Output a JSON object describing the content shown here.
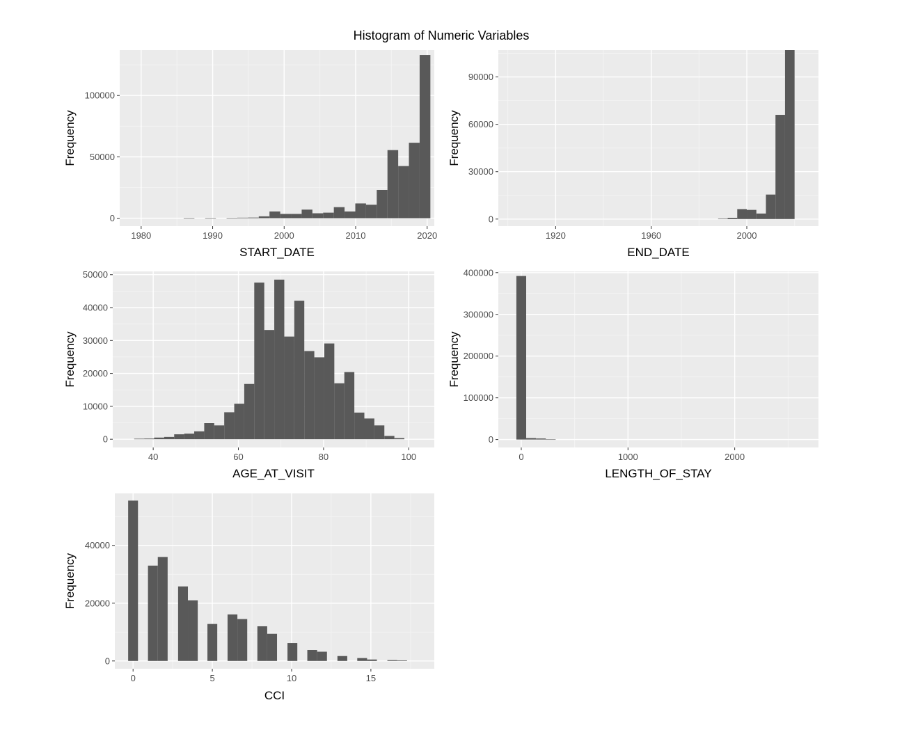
{
  "figure": {
    "title": "Histogram of Numeric Variables"
  },
  "colors": {
    "panel_background": "#ebebeb",
    "grid_major": "#ffffff",
    "grid_minor": "#f5f5f5",
    "bar_fill": "#595959",
    "tick_text": "#4d4d4d",
    "axis_title": "#000000",
    "page_background": "#ffffff"
  },
  "chart_data": [
    {
      "type": "bar",
      "xlabel": "START_DATE",
      "ylabel": "Frequency",
      "xlim": [
        1977,
        2021
      ],
      "ylim": [
        -6500,
        137000
      ],
      "x_ticks": [
        1980,
        1990,
        2000,
        2010,
        2020
      ],
      "y_ticks": [
        0,
        50000,
        100000
      ],
      "bin_width": 1.5,
      "bars": [
        {
          "x": 1986.7,
          "y": 300
        },
        {
          "x": 1989.7,
          "y": 300
        },
        {
          "x": 1992.7,
          "y": 200
        },
        {
          "x": 1994.2,
          "y": 400
        },
        {
          "x": 1995.7,
          "y": 500
        },
        {
          "x": 1997.2,
          "y": 1500
        },
        {
          "x": 1998.7,
          "y": 5500
        },
        {
          "x": 2000.2,
          "y": 3500
        },
        {
          "x": 2001.7,
          "y": 3500
        },
        {
          "x": 2003.2,
          "y": 7000
        },
        {
          "x": 2004.7,
          "y": 4000
        },
        {
          "x": 2006.2,
          "y": 4500
        },
        {
          "x": 2007.7,
          "y": 9000
        },
        {
          "x": 2009.2,
          "y": 5500
        },
        {
          "x": 2010.7,
          "y": 12000
        },
        {
          "x": 2012.2,
          "y": 11000
        },
        {
          "x": 2013.7,
          "y": 23000
        },
        {
          "x": 2015.2,
          "y": 55500
        },
        {
          "x": 2016.7,
          "y": 42500
        },
        {
          "x": 2018.2,
          "y": 61500
        },
        {
          "x": 2019.7,
          "y": 133000
        }
      ]
    },
    {
      "type": "bar",
      "xlabel": "END_DATE",
      "ylabel": "Frequency",
      "xlim": [
        1896,
        2030
      ],
      "ylim": [
        -4500,
        107000
      ],
      "x_ticks": [
        1920,
        1960,
        2000
      ],
      "y_ticks": [
        0,
        30000,
        60000,
        90000
      ],
      "bin_width": 4,
      "bars": [
        {
          "x": 1990,
          "y": 300
        },
        {
          "x": 1994,
          "y": 800
        },
        {
          "x": 1998,
          "y": 6300
        },
        {
          "x": 2002,
          "y": 5800
        },
        {
          "x": 2006,
          "y": 3500
        },
        {
          "x": 2010,
          "y": 15500
        },
        {
          "x": 2014,
          "y": 66000
        },
        {
          "x": 2018,
          "y": 107000
        }
      ]
    },
    {
      "type": "bar",
      "xlabel": "AGE_AT_VISIT",
      "ylabel": "Frequency",
      "xlim": [
        30.5,
        106
      ],
      "ylim": [
        -2500,
        51000
      ],
      "x_ticks": [
        40,
        60,
        80,
        100
      ],
      "y_ticks": [
        0,
        10000,
        20000,
        30000,
        40000,
        50000
      ],
      "bin_width": 2.35,
      "bars": [
        {
          "x": 36.7,
          "y": 150
        },
        {
          "x": 39.05,
          "y": 200
        },
        {
          "x": 41.4,
          "y": 500
        },
        {
          "x": 43.75,
          "y": 700
        },
        {
          "x": 46.1,
          "y": 1500
        },
        {
          "x": 48.45,
          "y": 1700
        },
        {
          "x": 50.8,
          "y": 2400
        },
        {
          "x": 53.15,
          "y": 4900
        },
        {
          "x": 55.5,
          "y": 4200
        },
        {
          "x": 57.85,
          "y": 8200
        },
        {
          "x": 60.2,
          "y": 10800
        },
        {
          "x": 62.55,
          "y": 16800
        },
        {
          "x": 64.9,
          "y": 47600
        },
        {
          "x": 67.25,
          "y": 33200
        },
        {
          "x": 69.6,
          "y": 48500
        },
        {
          "x": 71.95,
          "y": 31200
        },
        {
          "x": 74.3,
          "y": 42100
        },
        {
          "x": 76.65,
          "y": 26800
        },
        {
          "x": 79.0,
          "y": 24900
        },
        {
          "x": 81.35,
          "y": 29100
        },
        {
          "x": 83.7,
          "y": 17000
        },
        {
          "x": 86.05,
          "y": 20400
        },
        {
          "x": 88.4,
          "y": 8100
        },
        {
          "x": 90.75,
          "y": 6300
        },
        {
          "x": 93.1,
          "y": 4200
        },
        {
          "x": 95.45,
          "y": 1000
        },
        {
          "x": 97.8,
          "y": 350
        }
      ]
    },
    {
      "type": "bar",
      "xlabel": "LENGTH_OF_STAY",
      "ylabel": "Frequency",
      "xlim": [
        -215,
        2785
      ],
      "ylim": [
        -19000,
        403000
      ],
      "x_ticks": [
        0,
        1000,
        2000
      ],
      "y_ticks": [
        0,
        100000,
        200000,
        300000,
        400000
      ],
      "bin_width": 92,
      "bars": [
        {
          "x": 0,
          "y": 392000
        },
        {
          "x": 92,
          "y": 3500
        },
        {
          "x": 184,
          "y": 2500
        },
        {
          "x": 276,
          "y": 300
        }
      ]
    },
    {
      "type": "bar",
      "xlabel": "CCI",
      "ylabel": "Frequency",
      "xlim": [
        -1.15,
        19.0
      ],
      "ylim": [
        -2700,
        58000
      ],
      "x_ticks": [
        0,
        5,
        10,
        15
      ],
      "y_ticks": [
        0,
        20000,
        40000
      ],
      "bin_width": 0.62,
      "bars": [
        {
          "x": 0,
          "y": 55500
        },
        {
          "x": 1.25,
          "y": 33000
        },
        {
          "x": 1.87,
          "y": 36000
        },
        {
          "x": 3.15,
          "y": 25800
        },
        {
          "x": 3.77,
          "y": 21000
        },
        {
          "x": 5.0,
          "y": 12800
        },
        {
          "x": 6.27,
          "y": 16100
        },
        {
          "x": 6.89,
          "y": 14500
        },
        {
          "x": 8.15,
          "y": 12000
        },
        {
          "x": 8.77,
          "y": 9400
        },
        {
          "x": 10.05,
          "y": 6200
        },
        {
          "x": 11.3,
          "y": 3800
        },
        {
          "x": 11.92,
          "y": 3200
        },
        {
          "x": 13.2,
          "y": 1700
        },
        {
          "x": 14.45,
          "y": 1000
        },
        {
          "x": 15.07,
          "y": 500
        },
        {
          "x": 16.35,
          "y": 300
        },
        {
          "x": 16.97,
          "y": 200
        }
      ]
    }
  ]
}
